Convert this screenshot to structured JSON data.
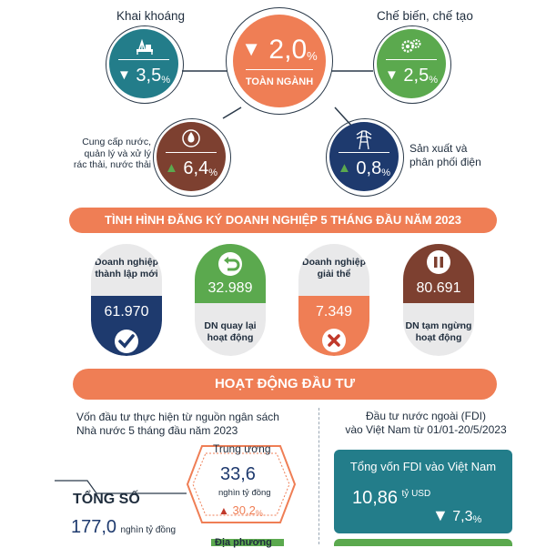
{
  "sectors": {
    "total": {
      "label": "TOÀN NGÀNH",
      "direction": "down",
      "value": "2,0",
      "unit": "%"
    },
    "mining": {
      "label": "Khai khoáng",
      "direction": "down",
      "value": "3,5",
      "unit": "%",
      "icon": "mining-rig-icon"
    },
    "processing": {
      "label": "Chế biến, chế tạo",
      "direction": "down",
      "value": "2,5",
      "unit": "%",
      "icon": "gears-icon"
    },
    "water": {
      "label_lines": [
        "Cung cấp nước,",
        "quản lý và xử lý",
        "rác thải, nước thải"
      ],
      "direction": "up",
      "value": "6,4",
      "unit": "%",
      "icon": "water-drop-icon"
    },
    "electricity": {
      "label_lines": [
        "Sản xuất và",
        "phân phối điện"
      ],
      "direction": "up",
      "value": "0,8",
      "unit": "%",
      "icon": "power-tower-icon"
    }
  },
  "registration": {
    "banner": "TÌNH HÌNH ĐĂNG KÝ DOANH NGHIỆP 5 THÁNG ĐẦU NĂM 2023",
    "cards": [
      {
        "label_lines": [
          "Doanh nghiệp",
          "thành lập mới"
        ],
        "value": "61.970",
        "icon": "checkmark-icon"
      },
      {
        "label_lines": [
          "DN quay lại",
          "hoạt động"
        ],
        "value": "32.989",
        "icon": "return-arrow-icon"
      },
      {
        "label_lines": [
          "Doanh nghiệp",
          "giải thể"
        ],
        "value": "7.349",
        "icon": "x-mark-icon"
      },
      {
        "label_lines": [
          "DN tạm ngừng",
          "hoạt động"
        ],
        "value": "80.691",
        "icon": "pause-icon"
      }
    ]
  },
  "investment": {
    "banner": "HOẠT ĐỘNG ĐẦU TƯ",
    "state_budget": {
      "title_lines": [
        "Vốn đầu tư thực hiện từ nguồn ngân sách",
        "Nhà nước 5 tháng đầu năm 2023"
      ],
      "total_label": "TỔNG SỐ",
      "total_value": "177,0",
      "total_unit": "nghìn tỷ đồng",
      "central": {
        "label": "Trung ương",
        "value": "33,6",
        "unit": "nghìn tỷ đồng",
        "change": "30,2",
        "change_unit": "%",
        "direction": "up"
      },
      "local_label": "Địa phương"
    },
    "fdi": {
      "title_lines": [
        "Đầu tư nước ngoài (FDI)",
        "vào Việt Nam từ 01/01-20/5/2023"
      ],
      "box_title": "Tổng vốn FDI vào Việt Nam",
      "value": "10,86",
      "unit": "tỷ USD",
      "change": "7,3",
      "change_unit": "%",
      "direction": "down"
    }
  },
  "colors": {
    "orange": "#ef7e55",
    "teal": "#237d8a",
    "green": "#5ba94e",
    "brown": "#7d4030",
    "navy": "#1e3a6e",
    "dark": "#2b3a4a"
  }
}
